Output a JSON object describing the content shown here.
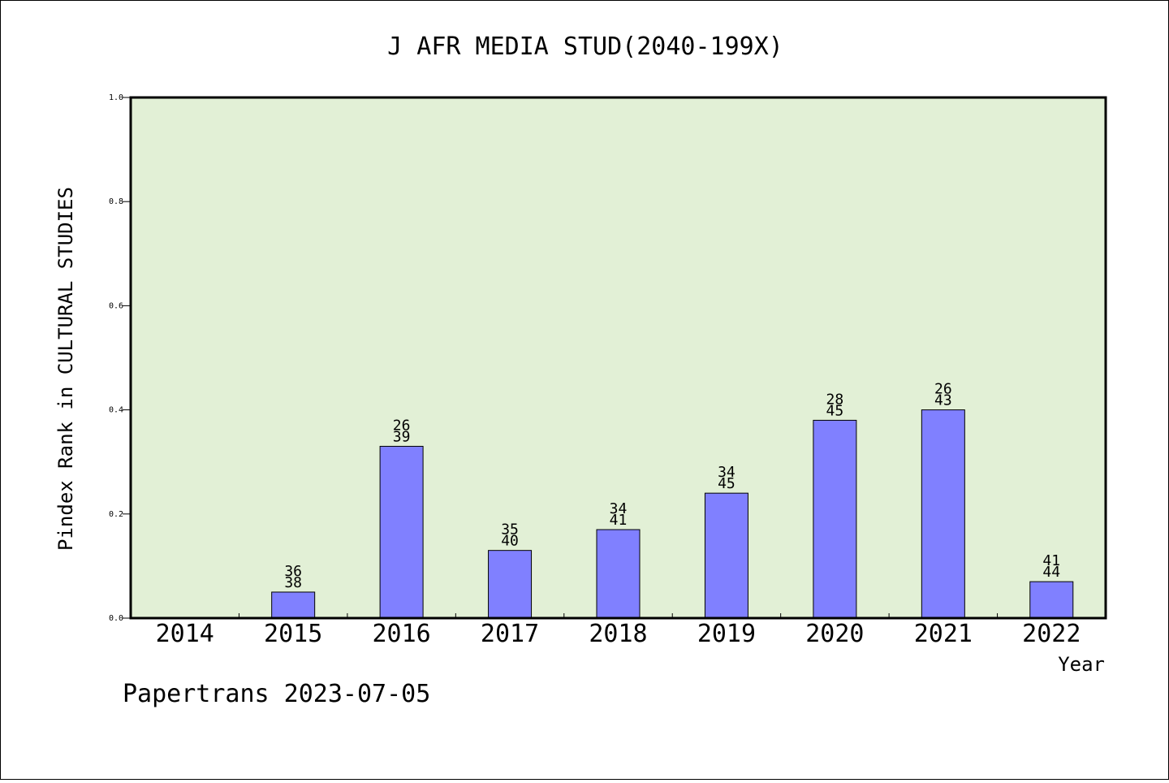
{
  "chart_data": {
    "type": "bar",
    "title": "J AFR MEDIA STUD(2040-199X)",
    "xlabel": "Year",
    "ylabel": "Pindex Rank in CULTURAL STUDIES",
    "ylim": [
      0,
      1.0
    ],
    "yticks": [
      "0.0",
      "0.2",
      "0.4",
      "0.6",
      "0.8",
      "1.0"
    ],
    "categories": [
      "2014",
      "2015",
      "2016",
      "2017",
      "2018",
      "2019",
      "2020",
      "2021",
      "2022"
    ],
    "values": [
      null,
      0.05,
      0.33,
      0.13,
      0.17,
      0.24,
      0.38,
      0.4,
      0.07
    ],
    "labels_top": [
      "",
      "36",
      "26",
      "35",
      "34",
      "34",
      "28",
      "26",
      "41"
    ],
    "labels_bottom": [
      "",
      "38",
      "39",
      "40",
      "41",
      "45",
      "45",
      "43",
      "44"
    ],
    "grid": false,
    "legend": "none",
    "colors": {
      "plot_bg": "#e2f0d6",
      "bar": "#8080ff",
      "bar_edge": "#000000"
    }
  },
  "footer": "Papertrans 2023-07-05"
}
